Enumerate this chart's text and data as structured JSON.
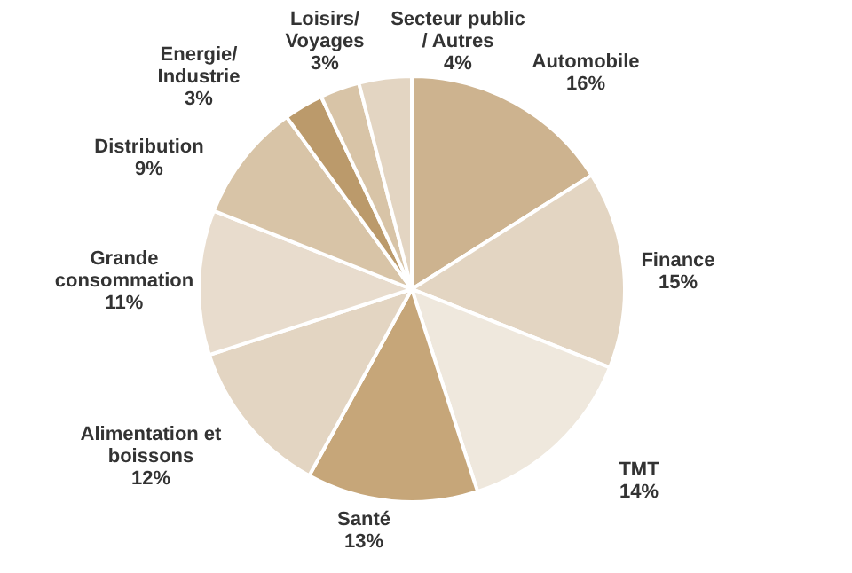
{
  "chart_data": {
    "type": "pie",
    "categories": [
      "Automobile",
      "Finance",
      "TMT",
      "Santé",
      "Alimentation et\nboissons",
      "Grande\nconsommation",
      "Distribution",
      "Energie/\nIndustrie",
      "Loisirs/\nVoyages",
      "Secteur public\n/ Autres"
    ],
    "values": [
      16,
      15,
      14,
      13,
      12,
      11,
      9,
      3,
      3,
      4
    ],
    "value_labels": [
      "16%",
      "15%",
      "14%",
      "13%",
      "12%",
      "11%",
      "9%",
      "3%",
      "3%",
      "4%"
    ],
    "colors": [
      "#cdb38f",
      "#e3d5c2",
      "#efe8dd",
      "#c6a679",
      "#e3d5c2",
      "#e8dccd",
      "#d8c4a7",
      "#bb9a6b",
      "#d8c4a7",
      "#e3d5c2"
    ]
  }
}
